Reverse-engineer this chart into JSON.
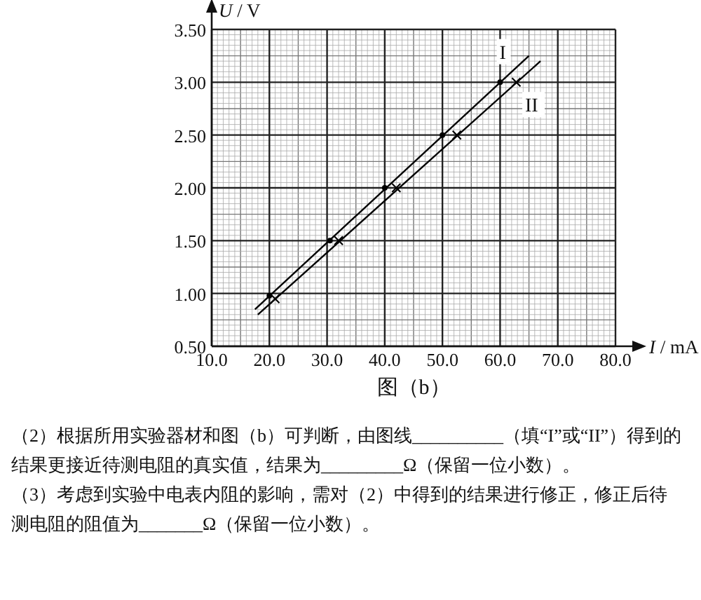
{
  "chart_data": {
    "type": "scatter",
    "xlabel": "I / mA",
    "ylabel": "U / V",
    "xlim": [
      10,
      80
    ],
    "ylim": [
      0.5,
      3.5
    ],
    "xticks": [
      {
        "value": 10,
        "label": "10.0"
      },
      {
        "value": 20,
        "label": "20.0"
      },
      {
        "value": 30,
        "label": "30.0"
      },
      {
        "value": 40,
        "label": "40.0"
      },
      {
        "value": 50,
        "label": "50.0"
      },
      {
        "value": 60,
        "label": "60.0"
      },
      {
        "value": 70,
        "label": "70.0"
      },
      {
        "value": 80,
        "label": "80.0"
      }
    ],
    "yticks": [
      {
        "value": 0.5,
        "label": "0.50"
      },
      {
        "value": 1,
        "label": "1.00"
      },
      {
        "value": 1.5,
        "label": "1.50"
      },
      {
        "value": 2,
        "label": "2.00"
      },
      {
        "value": 2.5,
        "label": "2.50"
      },
      {
        "value": 3,
        "label": "3.00"
      },
      {
        "value": 3.5,
        "label": "3.50"
      }
    ],
    "grid": true,
    "series": [
      {
        "marker": "circle",
        "color": "#000000",
        "x": [
          20,
          30.5,
          40,
          50,
          60
        ],
        "values": [
          0.98,
          1.5,
          2.0,
          2.5,
          3.0
        ]
      },
      {
        "marker": "cross",
        "color": "#000000",
        "x": [
          21,
          32,
          42,
          52.5,
          62.8
        ],
        "values": [
          0.95,
          1.5,
          2.0,
          2.5,
          3.0
        ]
      },
      {
        "type": "line",
        "name": "I",
        "color": "#000000",
        "x": [
          17.5,
          65
        ],
        "values": [
          0.85,
          3.25
        ]
      },
      {
        "type": "line",
        "name": "II",
        "color": "#000000",
        "x": [
          18,
          67
        ],
        "values": [
          0.8,
          3.2
        ]
      }
    ],
    "annotations": [
      "图（b）",
      "（2）根据所用实验器材和图（b）可判断，由图线__________（填“I”或“II”）得到的结果更接近待测电阻的真实值，结果为_________Ω（保留一位小数）。",
      "（3）考虑到实验中电表内阻的影响，需对（2）中得到的结果进行修正，修正后待测电阻的阻值为_______Ω（保留一位小数）。"
    ]
  }
}
